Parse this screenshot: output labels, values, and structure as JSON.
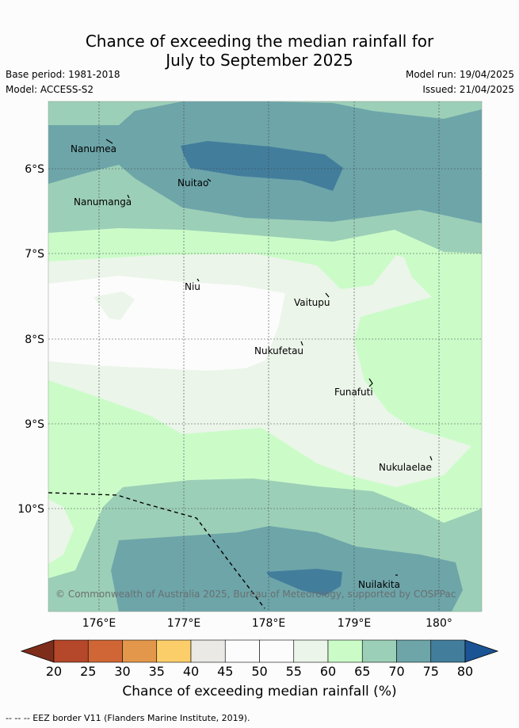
{
  "header": {
    "title_line1": "Chance of exceeding the median rainfall for",
    "title_line2": "July to September 2025",
    "base_period": "Base period: 1981-2018",
    "model": "Model: ACCESS-S2",
    "model_run": "Model run: 19/04/2025",
    "issued": "Issued: 21/04/2025"
  },
  "map": {
    "lat_labels": [
      "6°S",
      "7°S",
      "8°S",
      "9°S",
      "10°S"
    ],
    "lon_labels": [
      "176°E",
      "177°E",
      "178°E",
      "179°E",
      "180°"
    ],
    "places": [
      "Nanumea",
      "Nuitao",
      "Nanumanga",
      "Niu",
      "Vaitupu",
      "Nukufetau",
      "Funafuti",
      "Nukulaelae",
      "Nuilakita"
    ],
    "copyright": "© Commonwealth of Australia 2025, Bureau of Meteorology, supported by COSPPac",
    "eez_border": true
  },
  "colorbar": {
    "ticks": [
      "20",
      "25",
      "30",
      "35",
      "40",
      "45",
      "50",
      "55",
      "60",
      "65",
      "70",
      "75",
      "80"
    ],
    "colors": [
      "#7e2d1b",
      "#b5472a",
      "#d06636",
      "#e3974b",
      "#fcce6a",
      "#ebe9e5",
      "#fbfcfb",
      "#fbfcfb",
      "#ebf5e9",
      "#cbfcc8",
      "#9ccfb7",
      "#6da5a9",
      "#427d9c",
      "#1b5494"
    ],
    "label": "Chance of exceeding median rainfall (%)"
  },
  "footnote": "--  --  -- EEZ border V11 (Flanders Marine Institute, 2019)."
}
